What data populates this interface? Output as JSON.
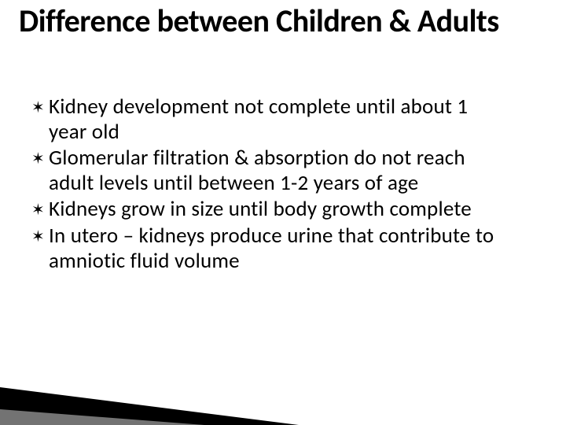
{
  "title": "Difference between Children & Adults",
  "title_color": "#000000",
  "title_fontsize": 40,
  "title_fontweight": 700,
  "bullet_glyph": "✶",
  "bullets": [
    "Kidney development not complete until about 1 year old",
    "Glomerular filtration & absorption do not reach adult levels until between 1-2 years of age",
    "Kidneys grow in size until body growth complete",
    "In utero – kidneys produce urine that contribute to amniotic fluid volume"
  ],
  "body_color": "#000000",
  "body_fontsize": 27,
  "background_color": "#ffffff",
  "accent": {
    "wedge_dark_color": "#000000",
    "wedge_light_color": "#bfbfbf"
  }
}
